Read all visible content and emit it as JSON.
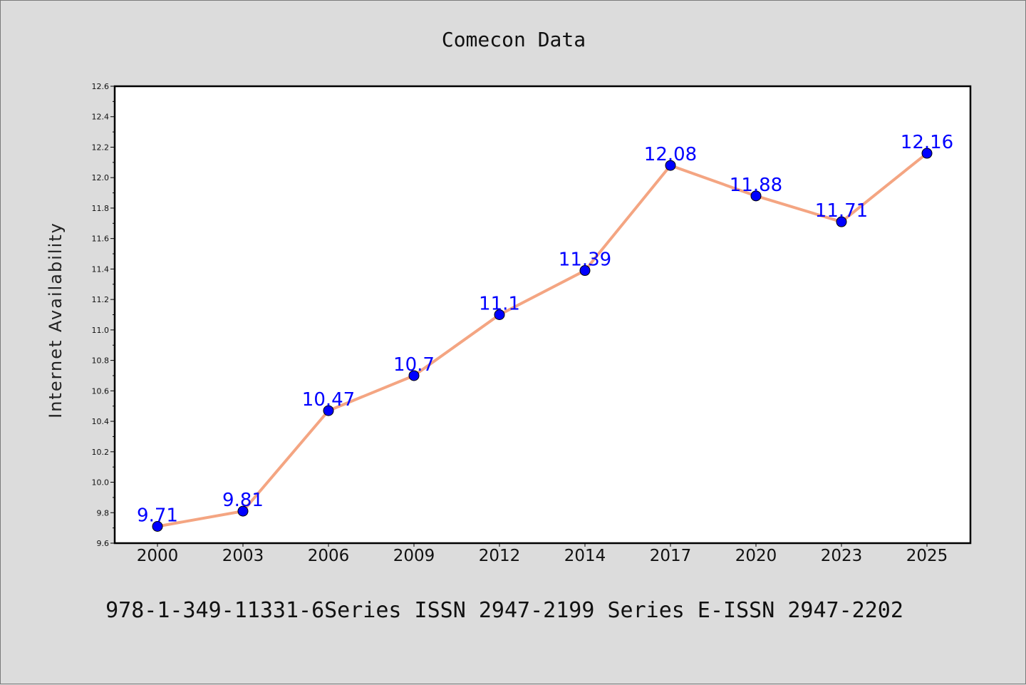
{
  "chart_data": {
    "type": "line",
    "title": "Comecon Data",
    "xlabel": "",
    "ylabel": "Internet Availability",
    "categories": [
      "2000",
      "2003",
      "2006",
      "2009",
      "2012",
      "2014",
      "2017",
      "2020",
      "2023",
      "2025"
    ],
    "series": [
      {
        "values": [
          9.71,
          9.81,
          10.47,
          10.7,
          11.1,
          11.39,
          12.08,
          11.88,
          11.71,
          12.16
        ],
        "data_labels": [
          "9.71",
          "9.81",
          "10.47",
          "10.7",
          "11.1",
          "11.39",
          "12.08",
          "11.88",
          "11.71",
          "12.16"
        ],
        "line_color": "#f4a582",
        "marker_color": "#0000ff"
      }
    ],
    "ylim": [
      9.6,
      12.6
    ],
    "yticks": [
      "9.6",
      "9.8",
      "10.0",
      "10.2",
      "10.4",
      "10.6",
      "10.8",
      "11.0",
      "11.2",
      "11.4",
      "11.6",
      "11.8",
      "12.0",
      "12.2",
      "12.4",
      "12.6"
    ],
    "grid": false,
    "legend": "none"
  },
  "caption": "978-1-349-11331-6Series ISSN 2947-2199 Series E-ISSN 2947-2202",
  "colors": {
    "background": "#dcdcdc",
    "plot_background": "#ffffff",
    "line": "#f4a582",
    "marker": "#0000ff",
    "data_label": "#0000ff"
  }
}
